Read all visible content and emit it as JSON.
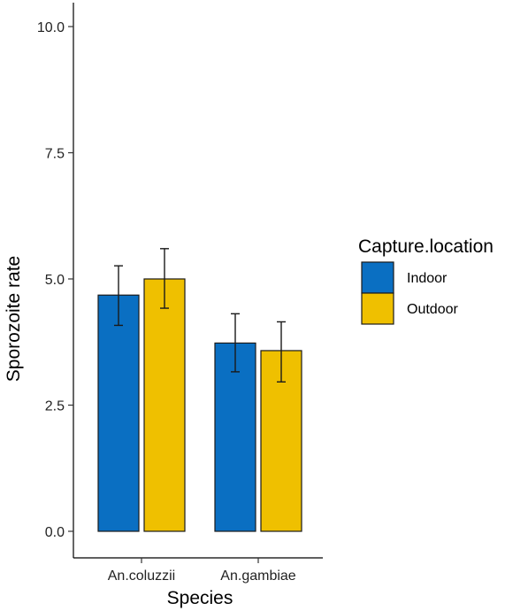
{
  "chart_data": {
    "type": "bar",
    "title": "",
    "xlabel": "Species",
    "ylabel": "Sporozoite rate",
    "categories": [
      "An.coluzzii",
      "An.gambiae"
    ],
    "series": [
      {
        "name": "Indoor",
        "values": [
          4.68,
          3.73
        ],
        "error_low": [
          4.08,
          3.16
        ],
        "error_high": [
          5.26,
          4.31
        ],
        "color": "#0a6fc2"
      },
      {
        "name": "Outdoor",
        "values": [
          5.0,
          3.58
        ],
        "error_low": [
          4.42,
          2.96
        ],
        "error_high": [
          5.6,
          4.15
        ],
        "color": "#efc000"
      }
    ],
    "ylim": [
      0,
      10.3
    ],
    "yticks": [
      0,
      2.5,
      5,
      7.5,
      10
    ],
    "ytick_labels": [
      "0.0",
      "2.5",
      "5.0",
      "7.5",
      "10.0"
    ],
    "grid": false,
    "legend": {
      "title": "Capture.location",
      "placement": "right",
      "entries": [
        "Indoor",
        "Outdoor"
      ]
    }
  }
}
